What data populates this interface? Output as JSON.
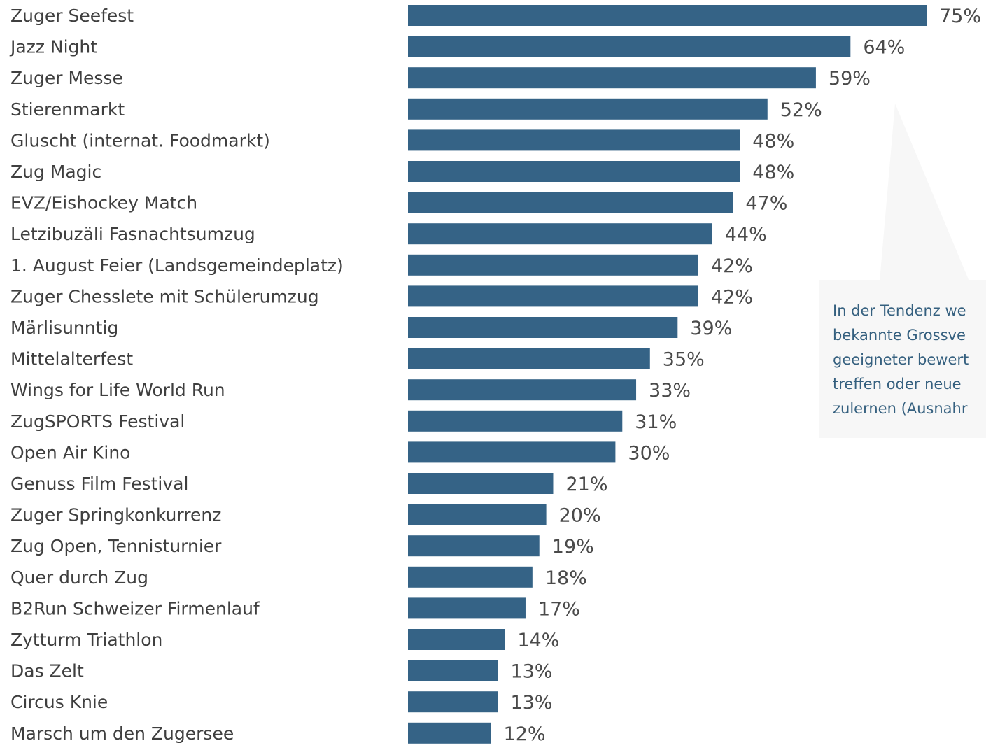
{
  "chart_data": {
    "type": "bar",
    "orientation": "horizontal",
    "categories": [
      "Zuger Seefest",
      "Jazz Night",
      "Zuger Messe",
      "Stierenmarkt",
      "Gluscht (internat. Foodmarkt)",
      "Zug Magic",
      "EVZ/Eishockey Match",
      "Letzibuzäli Fasnachtsumzug",
      "1. August Feier (Landsgemeindeplatz)",
      "Zuger Chesslete mit Schülerumzug",
      "Märlisunntig",
      "Mittelalterfest",
      "Wings for Life World Run",
      "ZugSPORTS Festival",
      "Open Air Kino",
      "Genuss Film Festival",
      "Zuger Springkonkurrenz",
      "Zug Open, Tennisturnier",
      "Quer durch Zug",
      "B2Run Schweizer Firmenlauf",
      "Zytturm Triathlon",
      "Das Zelt",
      "Circus Knie",
      "Marsch um den Zugersee"
    ],
    "values": [
      75,
      64,
      59,
      52,
      48,
      48,
      47,
      44,
      42,
      42,
      39,
      35,
      33,
      31,
      30,
      21,
      20,
      19,
      18,
      17,
      14,
      13,
      13,
      12
    ],
    "value_labels": [
      "75%",
      "64%",
      "59%",
      "52%",
      "48%",
      "48%",
      "47%",
      "44%",
      "42%",
      "42%",
      "39%",
      "35%",
      "33%",
      "31%",
      "30%",
      "21%",
      "20%",
      "19%",
      "18%",
      "17%",
      "14%",
      "13%",
      "13%",
      "12%"
    ],
    "unit": "%",
    "xlim": [
      0,
      75
    ],
    "bar_color": "#356386",
    "grid": false,
    "legend": "none",
    "annotation": {
      "lines": [
        "In der Tendenz we",
        "bekannte Grossve",
        "geeigneter bewert",
        "treffen oder neue",
        "zulernen (Ausnahr"
      ]
    }
  },
  "colors": {
    "bar": "#356386",
    "category_text": "#3f3f3f",
    "value_text": "#4a4a4a",
    "callout_fill": "#f7f7f7",
    "callout_text": "#35607f"
  }
}
